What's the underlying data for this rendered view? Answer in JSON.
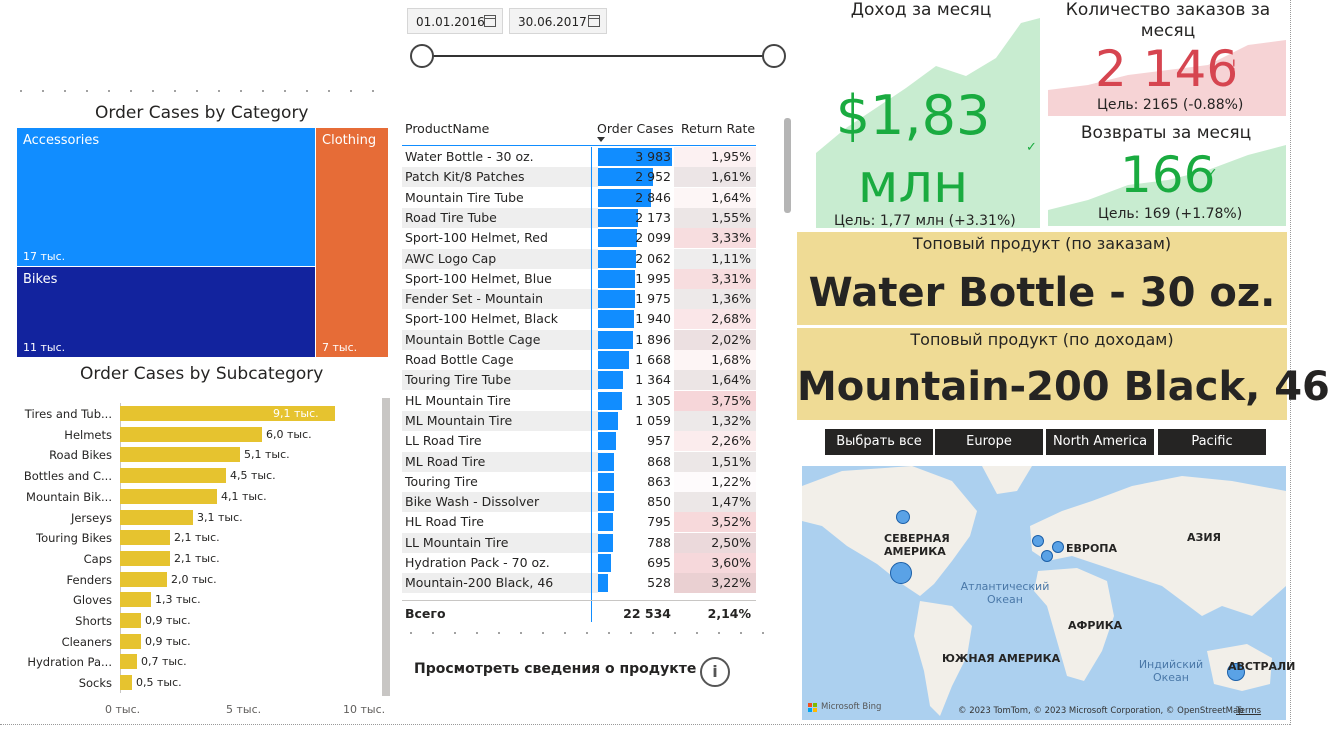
{
  "date_slicer": {
    "start": "01.01.2016",
    "end": "30.06.2017"
  },
  "treemap": {
    "title": "Order Cases by Category",
    "cells": [
      {
        "label": "Accessories",
        "value": "17 тыс.",
        "color": "#118dff"
      },
      {
        "label": "Bikes",
        "value": "11 тыс.",
        "color": "#12239e"
      },
      {
        "label": "Clothing",
        "value": "7 тыс.",
        "color": "#e66c37"
      }
    ]
  },
  "subcategory_chart": {
    "title": "Order Cases by Subcategory",
    "axis_ticks": [
      "0 тыс.",
      "5 тыс.",
      "10 тыс."
    ]
  },
  "chart_data": {
    "type": "bar",
    "orientation": "horizontal",
    "title": "Order Cases by Subcategory",
    "categories": [
      "Tires and Tub...",
      "Helmets",
      "Road Bikes",
      "Bottles and C...",
      "Mountain Bik...",
      "Jerseys",
      "Touring Bikes",
      "Caps",
      "Fenders",
      "Gloves",
      "Shorts",
      "Cleaners",
      "Hydration Pa...",
      "Socks"
    ],
    "values": [
      9.1,
      6.0,
      5.1,
      4.5,
      4.1,
      3.1,
      2.1,
      2.1,
      2.0,
      1.3,
      0.9,
      0.9,
      0.7,
      0.5
    ],
    "value_labels": [
      "9,1 тыс.",
      "6,0 тыс.",
      "5,1 тыс.",
      "4,5 тыс.",
      "4,1 тыс.",
      "3,1 тыс.",
      "2,1 тыс.",
      "2,1 тыс.",
      "2,0 тыс.",
      "1,3 тыс.",
      "0,9 тыс.",
      "0,9 тыс.",
      "0,7 тыс.",
      "0,5 тыс."
    ],
    "xlim": [
      0,
      10
    ],
    "color": "#e6c32f"
  },
  "table": {
    "headers": {
      "name": "ProductName",
      "orders": "Order Cases",
      "return_rate": "Return Rate"
    },
    "max_orders": 3983,
    "rows": [
      {
        "name": "Water Bottle - 30 oz.",
        "orders": 3983,
        "orders_label": "3 983",
        "rr": 1.95,
        "rr_label": "1,95%"
      },
      {
        "name": "Patch Kit/8 Patches",
        "orders": 2952,
        "orders_label": "2 952",
        "rr": 1.61,
        "rr_label": "1,61%"
      },
      {
        "name": "Mountain Tire Tube",
        "orders": 2846,
        "orders_label": "2 846",
        "rr": 1.64,
        "rr_label": "1,64%"
      },
      {
        "name": "Road Tire Tube",
        "orders": 2173,
        "orders_label": "2 173",
        "rr": 1.55,
        "rr_label": "1,55%"
      },
      {
        "name": "Sport-100 Helmet, Red",
        "orders": 2099,
        "orders_label": "2 099",
        "rr": 3.33,
        "rr_label": "3,33%"
      },
      {
        "name": "AWC Logo Cap",
        "orders": 2062,
        "orders_label": "2 062",
        "rr": 1.11,
        "rr_label": "1,11%"
      },
      {
        "name": "Sport-100 Helmet, Blue",
        "orders": 1995,
        "orders_label": "1 995",
        "rr": 3.31,
        "rr_label": "3,31%"
      },
      {
        "name": "Fender Set - Mountain",
        "orders": 1975,
        "orders_label": "1 975",
        "rr": 1.36,
        "rr_label": "1,36%"
      },
      {
        "name": "Sport-100 Helmet, Black",
        "orders": 1940,
        "orders_label": "1 940",
        "rr": 2.68,
        "rr_label": "2,68%"
      },
      {
        "name": "Mountain Bottle Cage",
        "orders": 1896,
        "orders_label": "1 896",
        "rr": 2.02,
        "rr_label": "2,02%"
      },
      {
        "name": "Road Bottle Cage",
        "orders": 1668,
        "orders_label": "1 668",
        "rr": 1.68,
        "rr_label": "1,68%"
      },
      {
        "name": "Touring Tire Tube",
        "orders": 1364,
        "orders_label": "1 364",
        "rr": 1.64,
        "rr_label": "1,64%"
      },
      {
        "name": "HL Mountain Tire",
        "orders": 1305,
        "orders_label": "1 305",
        "rr": 3.75,
        "rr_label": "3,75%"
      },
      {
        "name": "ML Mountain Tire",
        "orders": 1059,
        "orders_label": "1 059",
        "rr": 1.32,
        "rr_label": "1,32%"
      },
      {
        "name": "LL Road Tire",
        "orders": 957,
        "orders_label": "957",
        "rr": 2.26,
        "rr_label": "2,26%"
      },
      {
        "name": "ML Road Tire",
        "orders": 868,
        "orders_label": "868",
        "rr": 1.51,
        "rr_label": "1,51%"
      },
      {
        "name": "Touring Tire",
        "orders": 863,
        "orders_label": "863",
        "rr": 1.22,
        "rr_label": "1,22%"
      },
      {
        "name": "Bike Wash - Dissolver",
        "orders": 850,
        "orders_label": "850",
        "rr": 1.47,
        "rr_label": "1,47%"
      },
      {
        "name": "HL Road Tire",
        "orders": 795,
        "orders_label": "795",
        "rr": 3.52,
        "rr_label": "3,52%"
      },
      {
        "name": "LL Mountain Tire",
        "orders": 788,
        "orders_label": "788",
        "rr": 2.5,
        "rr_label": "2,50%"
      },
      {
        "name": "Hydration Pack - 70 oz.",
        "orders": 695,
        "orders_label": "695",
        "rr": 3.6,
        "rr_label": "3,60%"
      },
      {
        "name": "Mountain-200 Black, 46",
        "orders": 528,
        "orders_label": "528",
        "rr": 3.22,
        "rr_label": "3,22%"
      }
    ],
    "total": {
      "label": "Всего",
      "orders": "22 534",
      "rr": "2,14%"
    }
  },
  "product_details_link": "Просмотреть сведения о продукте",
  "kpi_revenue": {
    "title": "Доход за месяц",
    "value_line1": "$1,83",
    "value_line2": "млн",
    "goal": "Цель: 1,77 млн (+3.31%)",
    "color": "#1aab40"
  },
  "kpi_orders": {
    "title_line1": "Количество заказов за",
    "title_line2": "месяц",
    "value": "2 146",
    "mark": "!",
    "goal": "Цель: 2165 (-0.88%)",
    "color": "#d64550"
  },
  "kpi_returns": {
    "title": "Возвраты за месяц",
    "value": "166",
    "goal": "Цель: 169 (+1.78%)",
    "color": "#1aab40"
  },
  "top_by_orders": {
    "label": "Топовый продукт (по заказам)",
    "value": "Water Bottle - 30 oz."
  },
  "top_by_revenue": {
    "label": "Топовый продукт (по доходам)",
    "value": "Mountain-200 Black, 46"
  },
  "region_buttons": [
    "Выбрать все",
    "Europe",
    "North America",
    "Pacific"
  ],
  "map": {
    "labels": {
      "north_america_1": "СЕВЕРНАЯ",
      "north_america_2": "АМЕРИКА",
      "europe": "ЕВРОПА",
      "asia": "АЗИЯ",
      "africa": "АФРИКА",
      "south_america": "ЮЖНАЯ АМЕРИКА",
      "australia": "АВСТРАЛИ",
      "atlantic_1": "Атлантический",
      "atlantic_2": "Океан",
      "indian_1": "Индийский",
      "indian_2": "Океан"
    },
    "bing": "Microsoft Bing",
    "attribution": "© 2023 TomTom, © 2023 Microsoft Corporation, © OpenStreetMap",
    "terms": "Terms"
  }
}
